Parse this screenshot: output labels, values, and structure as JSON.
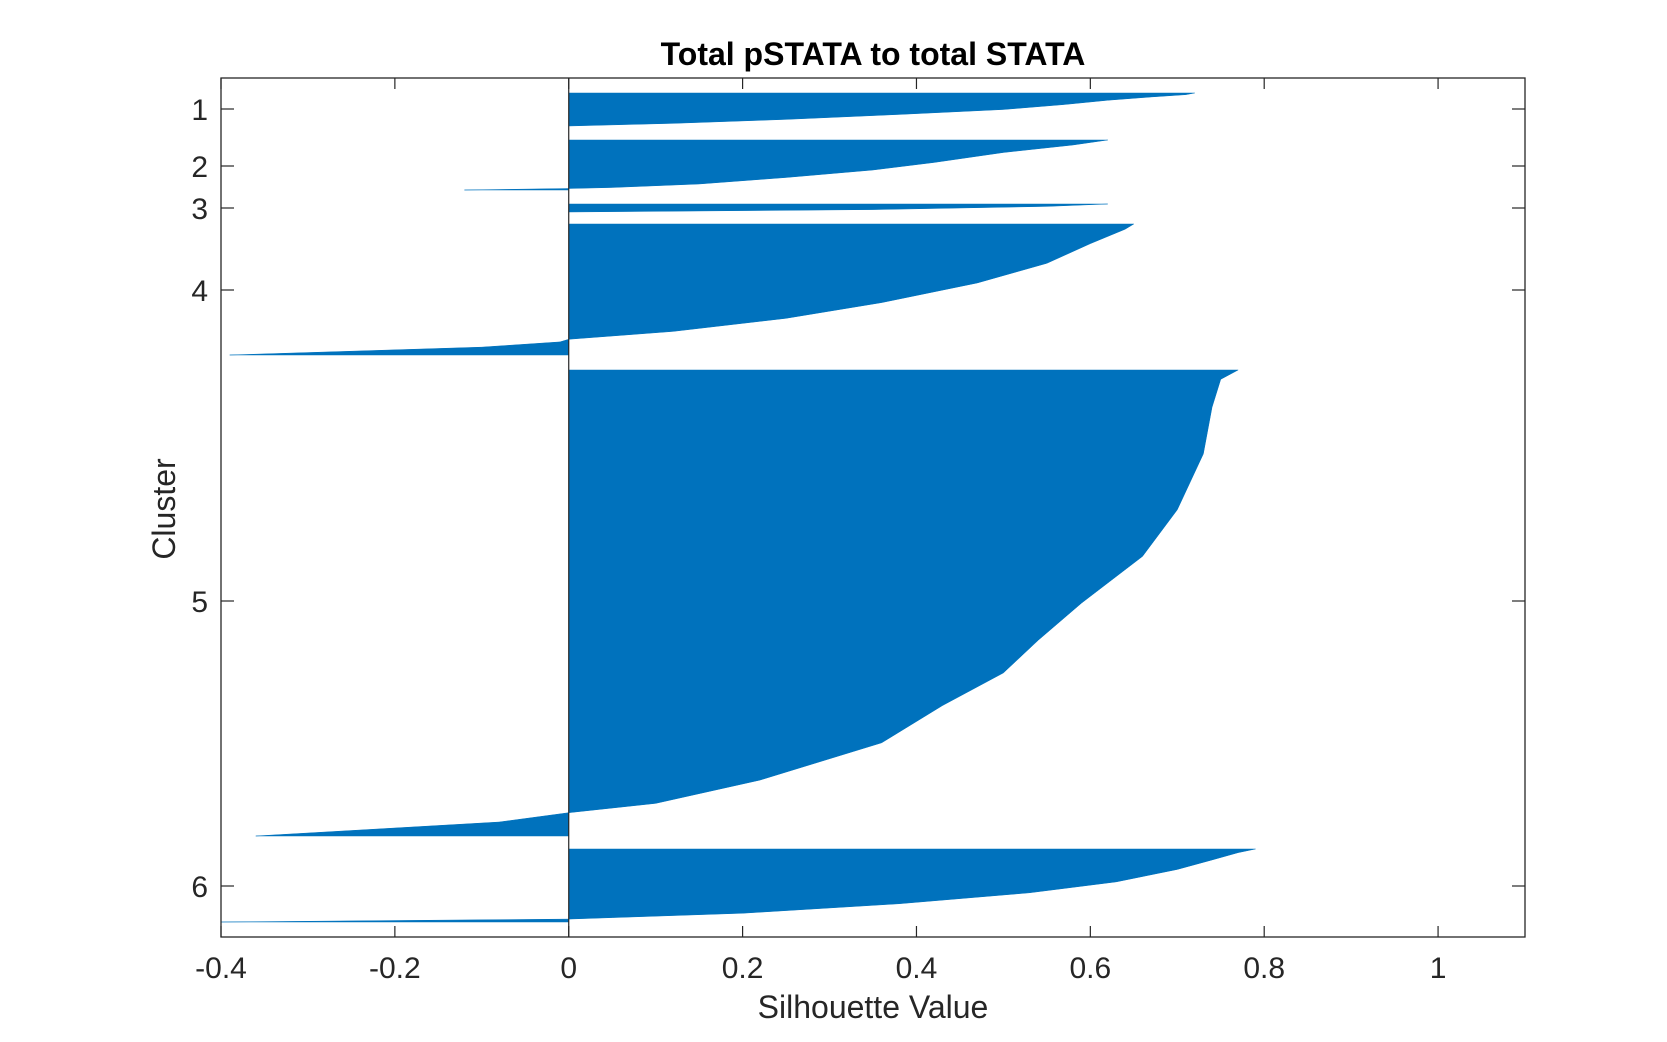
{
  "chart_data": {
    "type": "silhouette",
    "title": "Total pSTATA to total STATA",
    "xlabel": "Silhouette Value",
    "ylabel": "Cluster",
    "xlim": [
      -0.4,
      1.1
    ],
    "xticks": [
      -0.4,
      -0.2,
      0,
      0.2,
      0.4,
      0.6,
      0.8,
      1
    ],
    "xtick_labels": [
      "-0.4",
      "-0.2",
      "0",
      "0.2",
      "0.4",
      "0.6",
      "0.8",
      "1"
    ],
    "ytick_labels": [
      "1",
      "2",
      "3",
      "4",
      "5",
      "6"
    ],
    "bar_color": "#0072BD",
    "clusters": [
      {
        "label": "1",
        "silhouette_profile": [
          [
            0,
            0.72
          ],
          [
            0.05,
            0.71
          ],
          [
            0.12,
            0.67
          ],
          [
            0.22,
            0.62
          ],
          [
            0.35,
            0.57
          ],
          [
            0.5,
            0.5
          ],
          [
            0.65,
            0.38
          ],
          [
            0.8,
            0.25
          ],
          [
            0.92,
            0.12
          ],
          [
            1,
            0.0
          ]
        ]
      },
      {
        "label": "2",
        "silhouette_profile": [
          [
            0,
            0.62
          ],
          [
            0.1,
            0.58
          ],
          [
            0.25,
            0.5
          ],
          [
            0.45,
            0.42
          ],
          [
            0.6,
            0.35
          ],
          [
            0.75,
            0.25
          ],
          [
            0.88,
            0.15
          ],
          [
            0.95,
            0.05
          ],
          [
            0.97,
            0.0
          ],
          [
            1,
            -0.12
          ]
        ]
      },
      {
        "label": "3",
        "silhouette_profile": [
          [
            0,
            0.62
          ],
          [
            0.3,
            0.55
          ],
          [
            0.7,
            0.35
          ],
          [
            1,
            0.0
          ]
        ]
      },
      {
        "label": "4",
        "silhouette_profile": [
          [
            0,
            0.65
          ],
          [
            0.04,
            0.64
          ],
          [
            0.15,
            0.6
          ],
          [
            0.3,
            0.55
          ],
          [
            0.45,
            0.47
          ],
          [
            0.6,
            0.36
          ],
          [
            0.72,
            0.25
          ],
          [
            0.82,
            0.12
          ],
          [
            0.88,
            0.0
          ],
          [
            0.9,
            -0.01
          ],
          [
            0.94,
            -0.1
          ],
          [
            1,
            -0.39
          ]
        ]
      },
      {
        "label": "5",
        "silhouette_profile": [
          [
            0,
            0.77
          ],
          [
            0.02,
            0.75
          ],
          [
            0.08,
            0.74
          ],
          [
            0.18,
            0.73
          ],
          [
            0.3,
            0.7
          ],
          [
            0.4,
            0.66
          ],
          [
            0.5,
            0.59
          ],
          [
            0.58,
            0.54
          ],
          [
            0.65,
            0.5
          ],
          [
            0.72,
            0.43
          ],
          [
            0.8,
            0.36
          ],
          [
            0.88,
            0.22
          ],
          [
            0.93,
            0.1
          ],
          [
            0.95,
            0.0
          ],
          [
            0.97,
            -0.08
          ],
          [
            1,
            -0.36
          ]
        ]
      },
      {
        "label": "6",
        "silhouette_profile": [
          [
            0,
            0.79
          ],
          [
            0.05,
            0.77
          ],
          [
            0.15,
            0.74
          ],
          [
            0.28,
            0.7
          ],
          [
            0.45,
            0.63
          ],
          [
            0.6,
            0.53
          ],
          [
            0.75,
            0.38
          ],
          [
            0.88,
            0.2
          ],
          [
            0.94,
            0.05
          ],
          [
            0.96,
            0.0
          ],
          [
            1,
            -0.4
          ]
        ]
      }
    ]
  }
}
